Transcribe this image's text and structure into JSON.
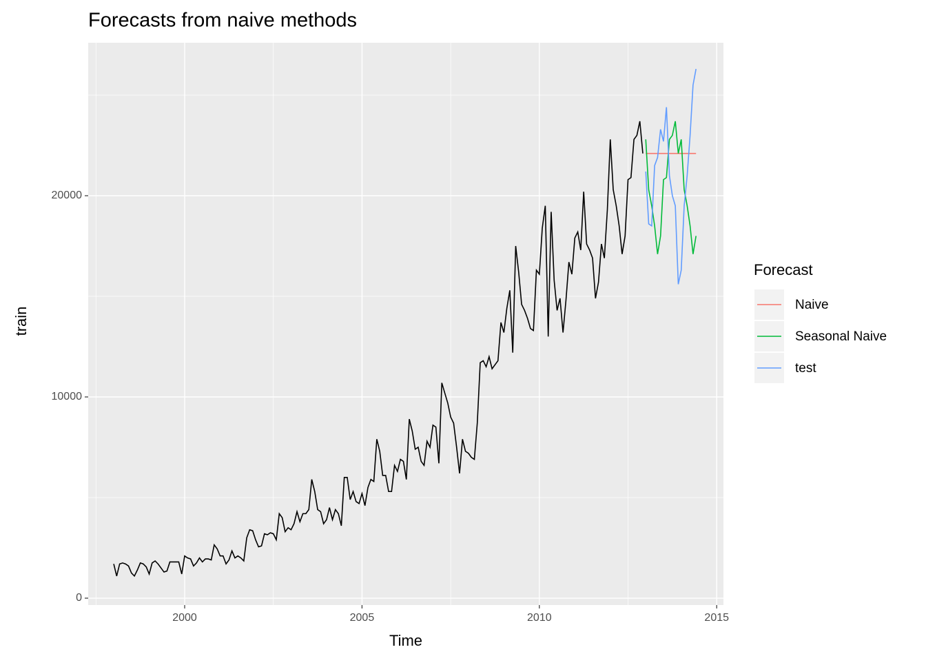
{
  "chart_data": {
    "type": "line",
    "title": "Forecasts from naive methods",
    "x_label": "Time",
    "y_label": "train",
    "legend_title": "Forecast",
    "legend_position": "right",
    "grid": true,
    "xlim": [
      1997.28,
      2015.19
    ],
    "ylim": [
      -342,
      27603
    ],
    "xticks": [
      2000,
      2005,
      2010,
      2015
    ],
    "yticks": [
      0,
      10000,
      20000
    ],
    "x_minor_grid": [
      1997.5,
      2002.5,
      2007.5,
      2012.5
    ],
    "y_minor_grid": [
      5000,
      15000,
      25000
    ],
    "series": [
      {
        "color": "#000000",
        "in_legend": false,
        "x": [
          1998,
          1998.083,
          1998.167,
          1998.25,
          1998.333,
          1998.417,
          1998.5,
          1998.583,
          1998.667,
          1998.75,
          1998.833,
          1998.917,
          1999,
          1999.083,
          1999.167,
          1999.25,
          1999.333,
          1999.417,
          1999.5,
          1999.583,
          1999.667,
          1999.75,
          1999.833,
          1999.917,
          2000,
          2000.083,
          2000.167,
          2000.25,
          2000.333,
          2000.417,
          2000.5,
          2000.583,
          2000.667,
          2000.75,
          2000.833,
          2000.917,
          2001,
          2001.083,
          2001.167,
          2001.25,
          2001.333,
          2001.417,
          2001.5,
          2001.583,
          2001.667,
          2001.75,
          2001.833,
          2001.917,
          2002,
          2002.083,
          2002.167,
          2002.25,
          2002.333,
          2002.417,
          2002.5,
          2002.583,
          2002.667,
          2002.75,
          2002.833,
          2002.917,
          2003,
          2003.083,
          2003.167,
          2003.25,
          2003.333,
          2003.417,
          2003.5,
          2003.583,
          2003.667,
          2003.75,
          2003.833,
          2003.917,
          2004,
          2004.083,
          2004.167,
          2004.25,
          2004.333,
          2004.417,
          2004.5,
          2004.583,
          2004.667,
          2004.75,
          2004.833,
          2004.917,
          2005,
          2005.083,
          2005.167,
          2005.25,
          2005.333,
          2005.417,
          2005.5,
          2005.583,
          2005.667,
          2005.75,
          2005.833,
          2005.917,
          2006,
          2006.083,
          2006.167,
          2006.25,
          2006.333,
          2006.417,
          2006.5,
          2006.583,
          2006.667,
          2006.75,
          2006.833,
          2006.917,
          2007,
          2007.083,
          2007.167,
          2007.25,
          2007.333,
          2007.417,
          2007.5,
          2007.583,
          2007.667,
          2007.75,
          2007.833,
          2007.917,
          2008,
          2008.083,
          2008.167,
          2008.25,
          2008.333,
          2008.417,
          2008.5,
          2008.583,
          2008.667,
          2008.75,
          2008.833,
          2008.917,
          2009,
          2009.083,
          2009.167,
          2009.25,
          2009.333,
          2009.417,
          2009.5,
          2009.583,
          2009.667,
          2009.75,
          2009.833,
          2009.917,
          2010,
          2010.083,
          2010.167,
          2010.25,
          2010.333,
          2010.417,
          2010.5,
          2010.583,
          2010.667,
          2010.75,
          2010.833,
          2010.917,
          2011,
          2011.083,
          2011.167,
          2011.25,
          2011.333,
          2011.417,
          2011.5,
          2011.583,
          2011.667,
          2011.75,
          2011.833,
          2011.917,
          2012,
          2012.083,
          2012.167,
          2012.25,
          2012.333,
          2012.417,
          2012.5,
          2012.583,
          2012.667,
          2012.75,
          2012.833,
          2012.917
        ],
        "values": [
          1700,
          1100,
          1700,
          1750,
          1700,
          1600,
          1250,
          1100,
          1400,
          1750,
          1700,
          1550,
          1200,
          1750,
          1850,
          1700,
          1500,
          1300,
          1350,
          1800,
          1800,
          1800,
          1800,
          1200,
          2100,
          2000,
          1950,
          1600,
          1750,
          2000,
          1800,
          1950,
          1950,
          1900,
          2650,
          2450,
          2100,
          2100,
          1700,
          1900,
          2350,
          2000,
          2100,
          2000,
          1850,
          3000,
          3400,
          3350,
          2900,
          2550,
          2600,
          3200,
          3150,
          3250,
          3200,
          2900,
          4200,
          4000,
          3300,
          3500,
          3400,
          3700,
          4300,
          3800,
          4200,
          4200,
          4400,
          5900,
          5300,
          4400,
          4300,
          3700,
          3900,
          4500,
          3900,
          4400,
          4200,
          3600,
          6000,
          6000,
          4900,
          5300,
          4800,
          4700,
          5200,
          4600,
          5500,
          5900,
          5800,
          7900,
          7300,
          6100,
          6100,
          5300,
          5300,
          6600,
          6300,
          6900,
          6800,
          5900,
          8900,
          8300,
          7400,
          7500,
          6800,
          6600,
          7800,
          7500,
          8600,
          8500,
          6700,
          10700,
          10200,
          9700,
          9000,
          8700,
          7500,
          6200,
          7900,
          7300,
          7200,
          7000,
          6900,
          8700,
          11700,
          11800,
          11500,
          12000,
          11400,
          11600,
          11800,
          13700,
          13200,
          14400,
          15300,
          12200,
          17500,
          16200,
          14600,
          14300,
          13900,
          13400,
          13300,
          16300,
          16100,
          18400,
          19500,
          13000,
          19200,
          15800,
          14300,
          14900,
          13200,
          14800,
          16700,
          16100,
          17900,
          18200,
          17300,
          20200,
          17600,
          17300,
          16900,
          14900,
          15700,
          17600,
          16900,
          19300,
          22800,
          20300,
          19500,
          18500,
          17100,
          18000,
          20800,
          20900,
          22800,
          23000,
          23700,
          22100
        ]
      },
      {
        "name": "Naive",
        "color": "#F8766D",
        "x": [
          2013,
          2013.083,
          2013.167,
          2013.25,
          2013.333,
          2013.417,
          2013.5,
          2013.583,
          2013.667,
          2013.75,
          2013.833,
          2013.917,
          2014,
          2014.083,
          2014.167,
          2014.25,
          2014.333,
          2014.417
        ],
        "values": [
          22100,
          22100,
          22100,
          22100,
          22100,
          22100,
          22100,
          22100,
          22100,
          22100,
          22100,
          22100,
          22100,
          22100,
          22100,
          22100,
          22100,
          22100
        ]
      },
      {
        "name": "Seasonal Naive",
        "color": "#00BA38",
        "x": [
          2013,
          2013.083,
          2013.167,
          2013.25,
          2013.333,
          2013.417,
          2013.5,
          2013.583,
          2013.667,
          2013.75,
          2013.833,
          2013.917,
          2014,
          2014.083,
          2014.167,
          2014.25,
          2014.333,
          2014.417
        ],
        "values": [
          22800,
          20300,
          19500,
          18500,
          17100,
          18000,
          20800,
          20900,
          22800,
          23000,
          23700,
          22100,
          22800,
          20300,
          19500,
          18500,
          17100,
          18000
        ]
      },
      {
        "name": "test",
        "color": "#619CFF",
        "x": [
          2013,
          2013.083,
          2013.167,
          2013.25,
          2013.333,
          2013.417,
          2013.5,
          2013.583,
          2013.667,
          2013.75,
          2013.833,
          2013.917,
          2014,
          2014.083,
          2014.167,
          2014.25,
          2014.333,
          2014.417
        ],
        "values": [
          21200,
          18600,
          18500,
          21500,
          21900,
          23300,
          22700,
          24400,
          21000,
          20000,
          19500,
          15600,
          16300,
          19500,
          21000,
          23000,
          25500,
          26300
        ]
      }
    ]
  }
}
